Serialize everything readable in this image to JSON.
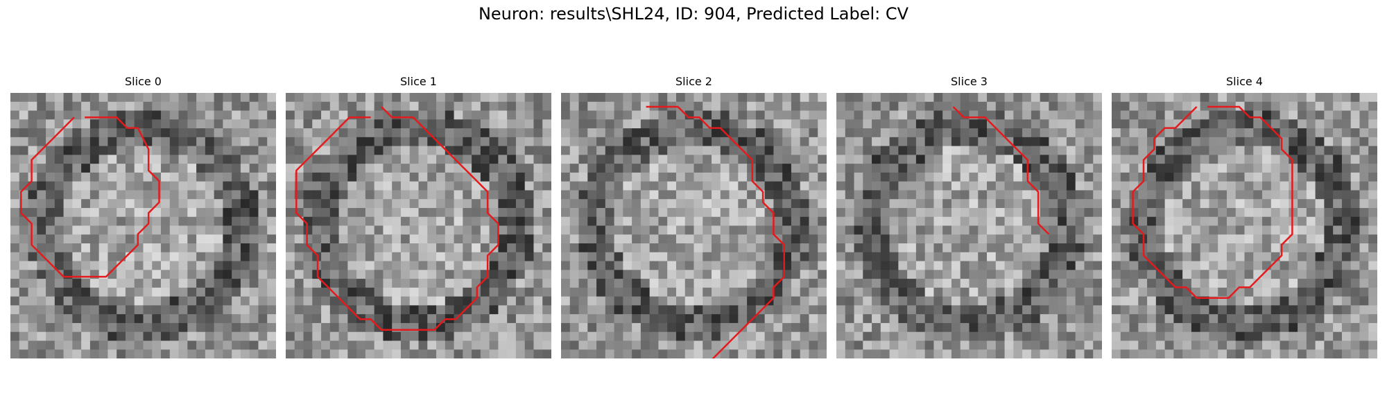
{
  "figure": {
    "title": "Neuron: results\\SHL24, ID: 904, Predicted Label: CV"
  },
  "panels": [
    {
      "title": "Slice 0",
      "seed": 11,
      "contour": [
        [
          7,
          1
        ],
        [
          10,
          1
        ],
        [
          11,
          2
        ],
        [
          12,
          2
        ],
        [
          13,
          4
        ],
        [
          13,
          6
        ],
        [
          14,
          7
        ],
        [
          14,
          9
        ],
        [
          13,
          10
        ],
        [
          13,
          11
        ],
        [
          12,
          12
        ],
        [
          12,
          13
        ],
        [
          11,
          14
        ],
        [
          10,
          15
        ],
        [
          9,
          16
        ],
        [
          6,
          16
        ],
        [
          5,
          16
        ],
        [
          4,
          15
        ],
        [
          3,
          14
        ],
        [
          2,
          13
        ],
        [
          2,
          11
        ],
        [
          1,
          10
        ],
        [
          1,
          8
        ],
        [
          2,
          7
        ],
        [
          2,
          5
        ],
        [
          3,
          4
        ],
        [
          4,
          3
        ],
        [
          5,
          2
        ],
        [
          6,
          1
        ]
      ]
    },
    {
      "title": "Slice 1",
      "seed": 23,
      "contour": [
        [
          9,
          0
        ],
        [
          10,
          1
        ],
        [
          12,
          1
        ],
        [
          13,
          2
        ],
        [
          14,
          3
        ],
        [
          15,
          4
        ],
        [
          16,
          5
        ],
        [
          17,
          6
        ],
        [
          18,
          7
        ],
        [
          19,
          8
        ],
        [
          19,
          10
        ],
        [
          20,
          11
        ],
        [
          20,
          13
        ],
        [
          19,
          14
        ],
        [
          19,
          16
        ],
        [
          18,
          17
        ],
        [
          18,
          18
        ],
        [
          17,
          19
        ],
        [
          16,
          20
        ],
        [
          15,
          20
        ],
        [
          14,
          21
        ],
        [
          12,
          21
        ],
        [
          11,
          21
        ],
        [
          9,
          21
        ],
        [
          8,
          20
        ],
        [
          7,
          20
        ],
        [
          6,
          19
        ],
        [
          5,
          18
        ],
        [
          4,
          17
        ],
        [
          3,
          16
        ],
        [
          3,
          14
        ],
        [
          2,
          13
        ],
        [
          2,
          11
        ],
        [
          1,
          10
        ],
        [
          1,
          6
        ],
        [
          2,
          5
        ],
        [
          3,
          4
        ],
        [
          4,
          3
        ],
        [
          5,
          2
        ],
        [
          6,
          1
        ],
        [
          8,
          1
        ]
      ]
    },
    {
      "title": "Slice 2",
      "seed": 37,
      "contour": [
        [
          8,
          0
        ],
        [
          11,
          0
        ],
        [
          12,
          1
        ],
        [
          13,
          1
        ],
        [
          14,
          2
        ],
        [
          15,
          2
        ],
        [
          16,
          3
        ],
        [
          17,
          4
        ],
        [
          18,
          5
        ],
        [
          18,
          7
        ],
        [
          19,
          8
        ],
        [
          19,
          9
        ],
        [
          20,
          10
        ],
        [
          20,
          12
        ],
        [
          21,
          13
        ],
        [
          21,
          16
        ],
        [
          20,
          17
        ],
        [
          20,
          18
        ],
        [
          19,
          19
        ],
        [
          18,
          20
        ],
        [
          17,
          21
        ],
        [
          16,
          22
        ],
        [
          15,
          23
        ],
        [
          14,
          24
        ],
        [
          13,
          24
        ]
      ]
    },
    {
      "title": "Slice 3",
      "seed": 53,
      "contour": [
        [
          11,
          0
        ],
        [
          12,
          1
        ],
        [
          14,
          1
        ],
        [
          15,
          2
        ],
        [
          16,
          3
        ],
        [
          17,
          4
        ],
        [
          18,
          5
        ],
        [
          18,
          7
        ],
        [
          19,
          8
        ],
        [
          19,
          11
        ],
        [
          20,
          12
        ]
      ]
    },
    {
      "title": "Slice 4",
      "seed": 71,
      "contour": [
        [
          9,
          0
        ],
        [
          12,
          0
        ],
        [
          13,
          1
        ],
        [
          14,
          1
        ],
        [
          15,
          2
        ],
        [
          16,
          3
        ],
        [
          16,
          4
        ],
        [
          17,
          5
        ],
        [
          17,
          10
        ],
        [
          17,
          12
        ],
        [
          16,
          13
        ],
        [
          16,
          14
        ],
        [
          15,
          15
        ],
        [
          14,
          16
        ],
        [
          13,
          17
        ],
        [
          12,
          17
        ],
        [
          11,
          18
        ],
        [
          8,
          18
        ],
        [
          7,
          17
        ],
        [
          6,
          17
        ],
        [
          5,
          16
        ],
        [
          4,
          15
        ],
        [
          3,
          14
        ],
        [
          3,
          12
        ],
        [
          2,
          11
        ],
        [
          2,
          8
        ],
        [
          3,
          7
        ],
        [
          3,
          5
        ],
        [
          4,
          4
        ],
        [
          4,
          3
        ],
        [
          5,
          2
        ],
        [
          6,
          2
        ],
        [
          7,
          1
        ],
        [
          8,
          0
        ]
      ]
    }
  ]
}
